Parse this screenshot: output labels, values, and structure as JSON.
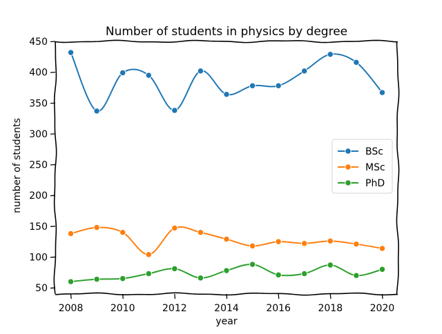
{
  "chart_data": {
    "type": "line",
    "title": "Number of students in physics by degree",
    "xlabel": "year",
    "ylabel": "number of students",
    "x": [
      2008,
      2009,
      2010,
      2011,
      2012,
      2013,
      2014,
      2015,
      2016,
      2017,
      2018,
      2019,
      2020
    ],
    "xticks": [
      2008,
      2010,
      2012,
      2014,
      2016,
      2018,
      2020
    ],
    "yticks": [
      50,
      100,
      150,
      200,
      250,
      300,
      350,
      400,
      450
    ],
    "xlim": [
      2007.4,
      2020.6
    ],
    "ylim": [
      40,
      450
    ],
    "grid": false,
    "legend_position": "center-right",
    "series": [
      {
        "name": "BSc",
        "color": "#1f77b4",
        "values": [
          432,
          337,
          399,
          395,
          338,
          402,
          364,
          378,
          378,
          402,
          429,
          416,
          367
        ]
      },
      {
        "name": "MSc",
        "color": "#ff7f0e",
        "values": [
          138,
          148,
          140,
          104,
          147,
          140,
          129,
          118,
          125,
          122,
          126,
          121,
          114
        ]
      },
      {
        "name": "PhD",
        "color": "#2ca02c",
        "values": [
          60,
          64,
          65,
          73,
          81,
          66,
          78,
          88,
          71,
          73,
          87,
          70,
          80
        ]
      }
    ]
  }
}
